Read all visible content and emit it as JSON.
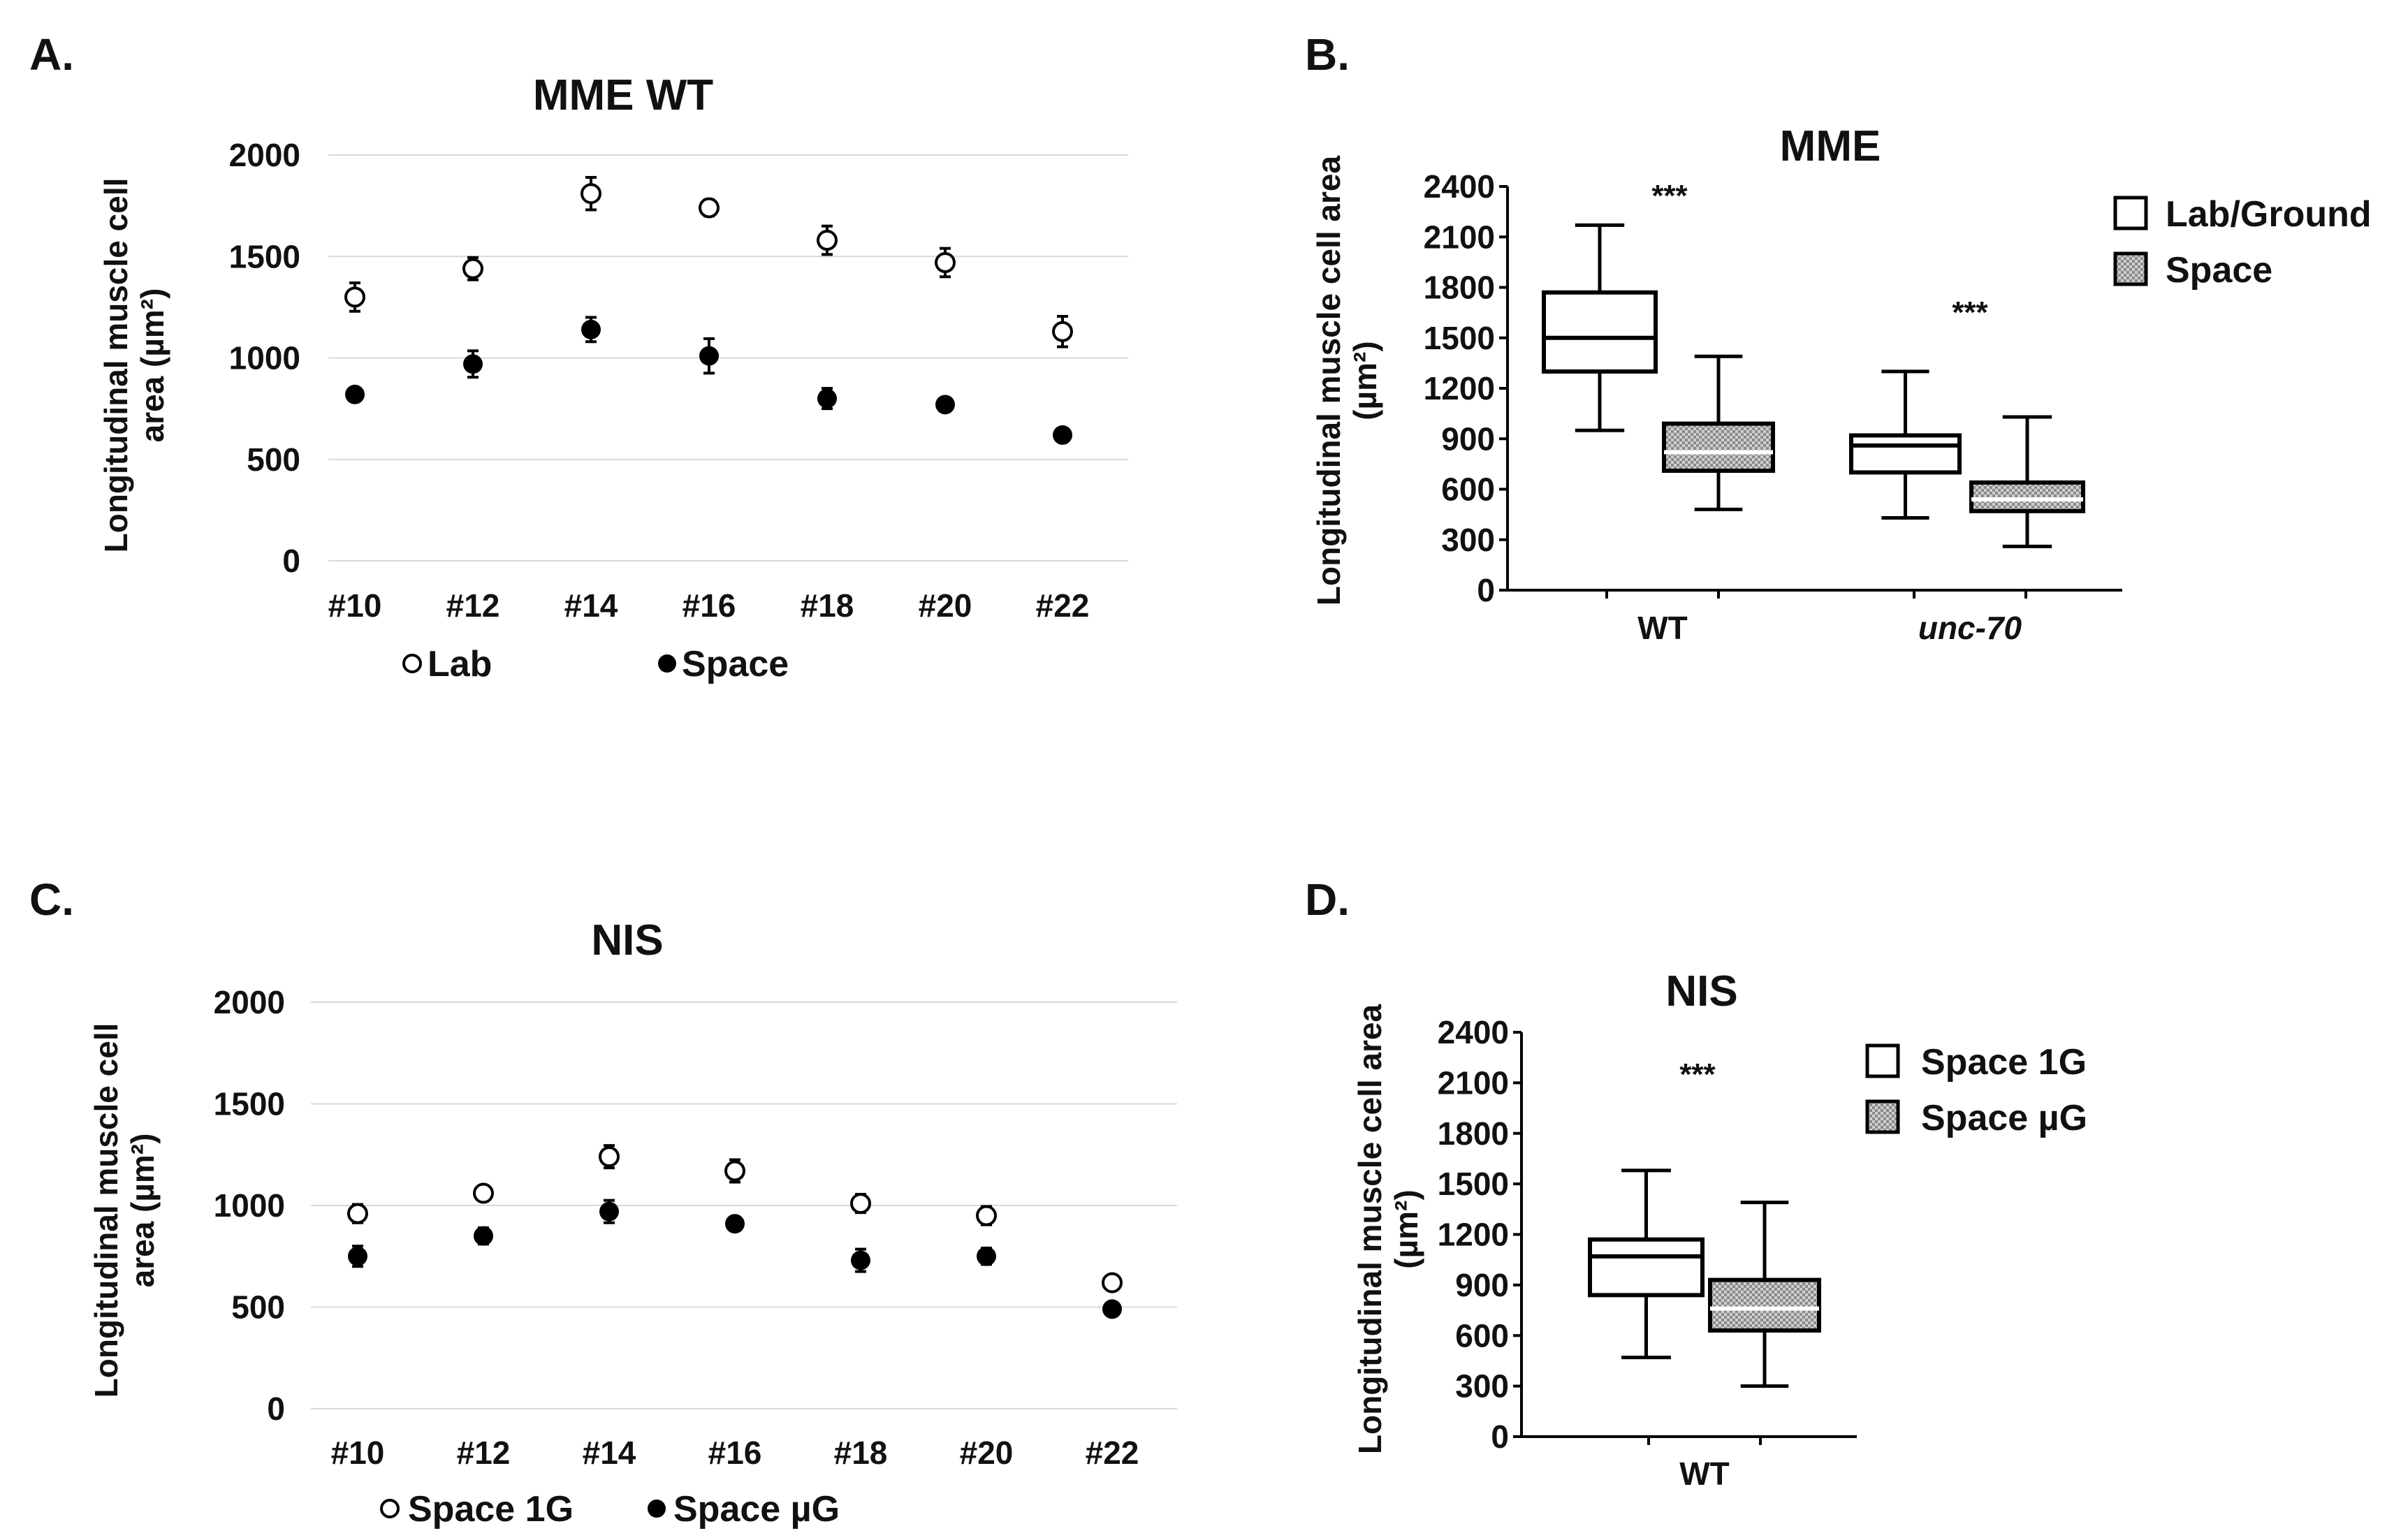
{
  "panels": {
    "A": {
      "letter": "A."
    },
    "B": {
      "letter": "B."
    },
    "C": {
      "letter": "C."
    },
    "D": {
      "letter": "D."
    }
  },
  "chart_data": [
    {
      "id": "A",
      "type": "scatter",
      "title": "MME WT",
      "ylabel_line1": "Longitudinal muscle cell",
      "ylabel_line2": "area (µm²)",
      "ylim": [
        0,
        2000
      ],
      "yticks": [
        0,
        500,
        1000,
        1500,
        2000
      ],
      "grid": true,
      "categories": [
        "#10",
        "#12",
        "#14",
        "#16",
        "#18",
        "#20",
        "#22"
      ],
      "series": [
        {
          "name": "Lab",
          "marker": "open-circle",
          "values": [
            1300,
            1440,
            1810,
            1740,
            1580,
            1470,
            1130
          ],
          "errors": [
            70,
            55,
            80,
            40,
            70,
            70,
            75
          ]
        },
        {
          "name": "Space",
          "marker": "filled-circle",
          "values": [
            820,
            970,
            1140,
            1010,
            800,
            770,
            620
          ],
          "errors": [
            30,
            65,
            60,
            85,
            50,
            25,
            25
          ]
        }
      ],
      "legend_position": "bottom"
    },
    {
      "id": "B",
      "type": "box",
      "title": "MME",
      "ylabel_line1": "Longitudinal muscle cell area",
      "ylabel_line2": "(µm²)",
      "ylim": [
        0,
        2400
      ],
      "yticks": [
        0,
        300,
        600,
        900,
        1200,
        1500,
        1800,
        2100,
        2400
      ],
      "groups": [
        "WT",
        "unc-70"
      ],
      "group_italic": [
        false,
        true
      ],
      "significance": [
        "***",
        "***"
      ],
      "series": [
        {
          "name": "Lab/Ground",
          "fill": "white",
          "boxes": [
            {
              "min": 950,
              "q1": 1300,
              "median": 1500,
              "q3": 1770,
              "max": 2170
            },
            {
              "min": 430,
              "q1": 700,
              "median": 860,
              "q3": 920,
              "max": 1300
            }
          ]
        },
        {
          "name": "Space",
          "fill": "hatched",
          "boxes": [
            {
              "min": 480,
              "q1": 710,
              "median": 820,
              "q3": 990,
              "max": 1390
            },
            {
              "min": 260,
              "q1": 470,
              "median": 540,
              "q3": 640,
              "max": 1030
            }
          ]
        }
      ],
      "legend_position": "top-right"
    },
    {
      "id": "C",
      "type": "scatter",
      "title": "NIS",
      "ylabel_line1": "Longitudinal muscle cell",
      "ylabel_line2": "area (µm²)",
      "ylim": [
        0,
        2000
      ],
      "yticks": [
        0,
        500,
        1000,
        1500,
        2000
      ],
      "grid": true,
      "categories": [
        "#10",
        "#12",
        "#14",
        "#16",
        "#18",
        "#20",
        "#22"
      ],
      "series": [
        {
          "name": "Space 1G",
          "marker": "open-circle",
          "values": [
            960,
            1060,
            1240,
            1170,
            1010,
            950,
            620
          ],
          "errors": [
            45,
            30,
            55,
            55,
            45,
            45,
            15
          ]
        },
        {
          "name": "Space µG",
          "marker": "filled-circle",
          "values": [
            750,
            850,
            970,
            910,
            730,
            750,
            490
          ],
          "errors": [
            50,
            40,
            55,
            20,
            55,
            40,
            15
          ]
        }
      ],
      "legend_position": "bottom"
    },
    {
      "id": "D",
      "type": "box",
      "title": "NIS",
      "ylabel_line1": "Longitudinal muscle cell area",
      "ylabel_line2": "(µm²)",
      "ylim": [
        0,
        2400
      ],
      "yticks": [
        0,
        300,
        600,
        900,
        1200,
        1500,
        1800,
        2100,
        2400
      ],
      "groups": [
        "WT"
      ],
      "group_italic": [
        false
      ],
      "significance": [
        "***"
      ],
      "series": [
        {
          "name": "Space 1G",
          "fill": "white",
          "boxes": [
            {
              "min": 470,
              "q1": 840,
              "median": 1070,
              "q3": 1170,
              "max": 1580
            }
          ]
        },
        {
          "name": "Space µG",
          "fill": "hatched",
          "boxes": [
            {
              "min": 300,
              "q1": 630,
              "median": 760,
              "q3": 930,
              "max": 1390
            }
          ]
        }
      ],
      "legend_position": "top-right"
    }
  ]
}
